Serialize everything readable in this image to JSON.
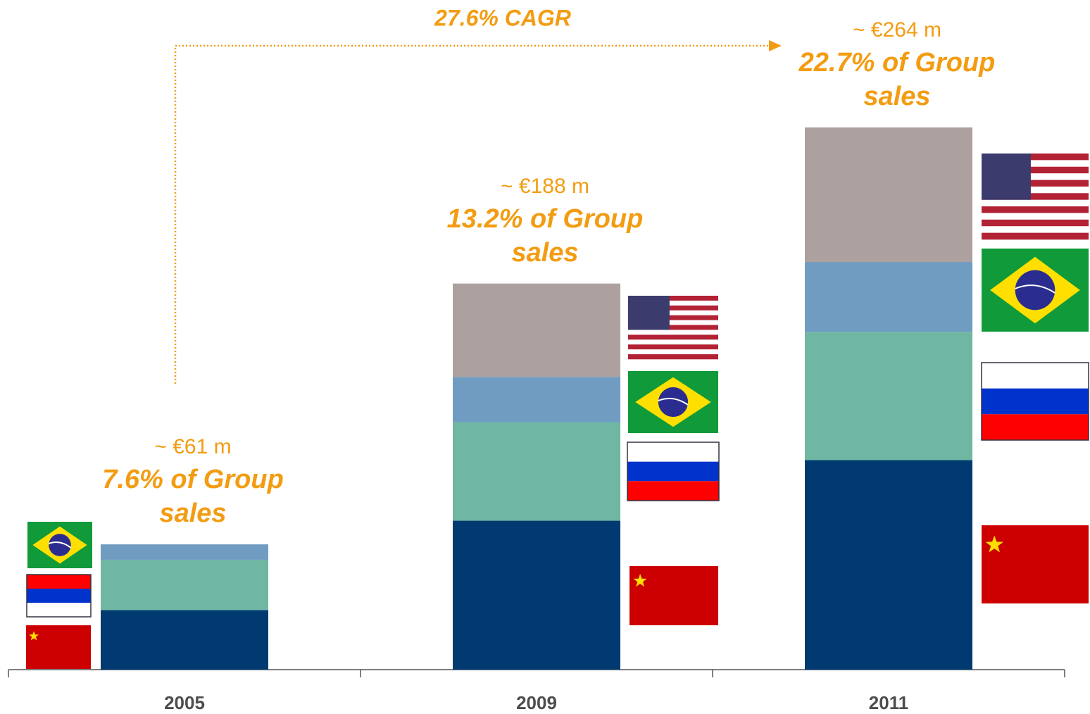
{
  "chart_data": {
    "type": "stacked_bar",
    "categories": [
      "2005",
      "2009",
      "2011"
    ],
    "series": [
      {
        "color": "#003a70",
        "values": [
          29,
          72.5,
          102
        ]
      },
      {
        "color": "#6fb7a3",
        "values": [
          24.5,
          48,
          62.5
        ]
      },
      {
        "color": "#709cc2",
        "values": [
          7.5,
          22,
          34
        ]
      },
      {
        "color": "#ada1a0",
        "values": [
          null,
          45.5,
          65.5
        ]
      }
    ],
    "total_labels": [
      "~ €61 m",
      "~ €188 m",
      "~ €264 m"
    ],
    "share_labels": [
      "7.6% of Group sales",
      "13.2% of Group sales",
      "22.7% of Group sales"
    ],
    "annotation": "27.6% CAGR",
    "accent_color": "#f39c12"
  }
}
